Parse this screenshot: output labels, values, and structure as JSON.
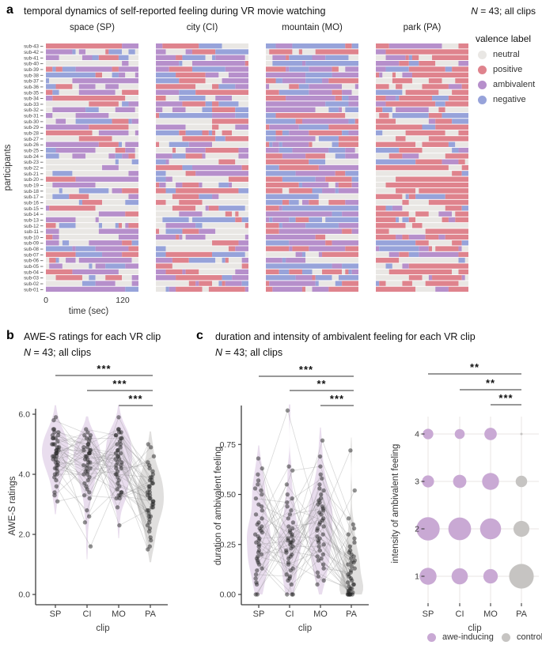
{
  "accent_colors": {
    "awe": "#c9a9d4",
    "control": "#c6c4c2",
    "point": "#262626",
    "axis": "#3c3c3c",
    "grid": "#e8e6e3"
  },
  "chart_data": [
    {
      "id": "valence_raster",
      "type": "heatmap",
      "panel_label": "a",
      "title": "temporal dynamics of self-reported feeling during VR movie watching",
      "note_prefix": "N",
      "note_rest": " = 43; all clips",
      "xlabel": "time (sec)",
      "ylabel": "participants",
      "xticks": [
        "0",
        "120"
      ],
      "x_range_sec": [
        0,
        145
      ],
      "legend_title": "valence label",
      "valence_labels": [
        "neutral",
        "positive",
        "ambivalent",
        "negative"
      ],
      "valence_colors": [
        "#e9e7e4",
        "#df838d",
        "#b68fcb",
        "#97a3da"
      ],
      "pattern_seed": 11,
      "clips": [
        {
          "header": "space (SP)",
          "proportions": [
            0.36,
            0.18,
            0.3,
            0.16
          ]
        },
        {
          "header": "city (CI)",
          "proportions": [
            0.3,
            0.22,
            0.24,
            0.24
          ]
        },
        {
          "header": "mountain (MO)",
          "proportions": [
            0.15,
            0.22,
            0.33,
            0.3
          ]
        },
        {
          "header": "park (PA)",
          "proportions": [
            0.3,
            0.48,
            0.12,
            0.1
          ]
        }
      ],
      "participants": [
        "sub-01",
        "sub-02",
        "sub-03",
        "sub-04",
        "sub-05",
        "sub-06",
        "sub-07",
        "sub-08",
        "sub-09",
        "sub-10",
        "sub-11",
        "sub-12",
        "sub-13",
        "sub-14",
        "sub-15",
        "sub-16",
        "sub-17",
        "sub-18",
        "sub-19",
        "sub-20",
        "sub-21",
        "sub-22",
        "sub-23",
        "sub-24",
        "sub-25",
        "sub-26",
        "sub-27",
        "sub-28",
        "sub-29",
        "sub-30",
        "sub-31",
        "sub-32",
        "sub-33",
        "sub-34",
        "sub-35",
        "sub-36",
        "sub-37",
        "sub-38",
        "sub-39",
        "sub-40",
        "sub-41",
        "sub-42",
        "sub-43"
      ]
    },
    {
      "id": "awe_ratings",
      "type": "violin-scatter",
      "panel_label": "b",
      "title": "AWE-S ratings for each VR clip",
      "note_prefix": "N",
      "note_rest": " = 43; all clips",
      "xlabel": "clip",
      "ylabel": "AWE-S ratings",
      "categories": [
        "SP",
        "CI",
        "MO",
        "PA"
      ],
      "groups": [
        "awe-inducing",
        "awe-inducing",
        "awe-inducing",
        "control"
      ],
      "ytick_labels": [
        "0.0",
        "2.0",
        "4.0",
        "6.0"
      ],
      "yticks": [
        0,
        2,
        4,
        6
      ],
      "ylim": [
        0,
        6.3
      ],
      "significance": [
        {
          "from": "SP",
          "to": "PA",
          "stars": "***"
        },
        {
          "from": "CI",
          "to": "PA",
          "stars": "***"
        },
        {
          "from": "MO",
          "to": "PA",
          "stars": "***"
        }
      ],
      "values": {
        "SP": [
          5.9,
          5.8,
          5.5,
          5.5,
          5.4,
          5.4,
          5.3,
          5.3,
          5.2,
          5.2,
          5.2,
          5.1,
          5.0,
          5.0,
          5.0,
          4.9,
          4.9,
          4.8,
          4.8,
          4.8,
          4.7,
          4.7,
          4.7,
          4.6,
          4.6,
          4.6,
          4.5,
          4.5,
          4.4,
          4.4,
          4.3,
          4.3,
          4.2,
          4.2,
          4.1,
          4.0,
          4.0,
          3.9,
          3.8,
          3.6,
          3.4,
          3.3,
          3.1
        ],
        "CI": [
          5.5,
          5.4,
          5.3,
          5.3,
          5.2,
          5.2,
          5.1,
          5.0,
          5.0,
          4.9,
          4.9,
          4.8,
          4.8,
          4.8,
          4.7,
          4.7,
          4.7,
          4.6,
          4.6,
          4.5,
          4.5,
          4.4,
          4.4,
          4.3,
          4.3,
          4.2,
          4.2,
          4.1,
          4.1,
          4.0,
          4.0,
          3.9,
          3.8,
          3.7,
          3.6,
          3.5,
          3.4,
          3.3,
          3.2,
          2.8,
          2.6,
          2.4,
          1.6
        ],
        "MO": [
          5.9,
          5.5,
          5.5,
          5.4,
          5.4,
          5.3,
          5.3,
          5.2,
          5.2,
          5.1,
          5.0,
          5.0,
          4.9,
          4.8,
          4.8,
          4.7,
          4.7,
          4.6,
          4.6,
          4.5,
          4.5,
          4.4,
          4.4,
          4.3,
          4.3,
          4.2,
          4.2,
          4.1,
          4.0,
          4.0,
          3.9,
          3.8,
          3.7,
          3.6,
          3.5,
          3.4,
          3.4,
          3.3,
          3.3,
          3.2,
          3.2,
          2.9,
          2.3
        ],
        "PA": [
          5.0,
          4.9,
          4.6,
          4.4,
          4.3,
          4.2,
          4.1,
          4.0,
          3.9,
          3.9,
          3.8,
          3.8,
          3.7,
          3.7,
          3.6,
          3.6,
          3.5,
          3.4,
          3.4,
          3.3,
          3.3,
          3.2,
          3.2,
          3.1,
          3.1,
          3.0,
          3.0,
          2.9,
          2.9,
          2.8,
          2.8,
          2.7,
          2.6,
          2.6,
          2.5,
          2.4,
          2.3,
          2.2,
          2.1,
          1.9,
          1.8,
          1.6,
          1.5
        ]
      }
    },
    {
      "id": "ambivalent_duration",
      "type": "violin-scatter",
      "panel_label": "c",
      "title": "duration and intensity of ambivalent feeling for each VR clip",
      "note_prefix": "N",
      "note_rest": " = 43; all clips",
      "xlabel": "clip",
      "ylabel": "duration of ambivalent feeling",
      "categories": [
        "SP",
        "CI",
        "MO",
        "PA"
      ],
      "groups": [
        "awe-inducing",
        "awe-inducing",
        "awe-inducing",
        "control"
      ],
      "ytick_labels": [
        "0.00",
        "0.25",
        "0.50",
        "0.75"
      ],
      "yticks": [
        0,
        0.25,
        0.5,
        0.75
      ],
      "ylim": [
        0,
        0.95
      ],
      "significance": [
        {
          "from": "SP",
          "to": "PA",
          "stars": "***"
        },
        {
          "from": "CI",
          "to": "PA",
          "stars": "**"
        },
        {
          "from": "MO",
          "to": "PA",
          "stars": "***"
        }
      ],
      "values": {
        "SP": [
          0.68,
          0.63,
          0.6,
          0.57,
          0.55,
          0.53,
          0.52,
          0.5,
          0.48,
          0.45,
          0.44,
          0.42,
          0.4,
          0.38,
          0.36,
          0.35,
          0.34,
          0.33,
          0.32,
          0.31,
          0.3,
          0.29,
          0.28,
          0.27,
          0.26,
          0.25,
          0.24,
          0.22,
          0.21,
          0.2,
          0.19,
          0.18,
          0.17,
          0.16,
          0.15,
          0.13,
          0.12,
          0.1,
          0.08,
          0.06,
          0.05,
          0.0,
          0.0
        ],
        "CI": [
          0.92,
          0.64,
          0.62,
          0.55,
          0.5,
          0.48,
          0.46,
          0.44,
          0.42,
          0.4,
          0.38,
          0.36,
          0.34,
          0.33,
          0.32,
          0.31,
          0.3,
          0.29,
          0.28,
          0.27,
          0.27,
          0.26,
          0.26,
          0.25,
          0.24,
          0.23,
          0.22,
          0.21,
          0.2,
          0.19,
          0.18,
          0.16,
          0.15,
          0.13,
          0.12,
          0.1,
          0.09,
          0.08,
          0.07,
          0.05,
          0.0,
          0.0,
          0.0
        ],
        "MO": [
          0.77,
          0.69,
          0.64,
          0.6,
          0.58,
          0.55,
          0.53,
          0.52,
          0.5,
          0.48,
          0.47,
          0.46,
          0.45,
          0.44,
          0.43,
          0.42,
          0.41,
          0.4,
          0.38,
          0.37,
          0.36,
          0.35,
          0.34,
          0.33,
          0.32,
          0.3,
          0.29,
          0.28,
          0.27,
          0.26,
          0.25,
          0.24,
          0.22,
          0.2,
          0.19,
          0.18,
          0.17,
          0.15,
          0.13,
          0.11,
          0.09,
          0.07,
          0.05
        ],
        "PA": [
          0.72,
          0.52,
          0.38,
          0.35,
          0.33,
          0.3,
          0.28,
          0.26,
          0.24,
          0.22,
          0.21,
          0.2,
          0.19,
          0.18,
          0.17,
          0.16,
          0.16,
          0.15,
          0.14,
          0.13,
          0.12,
          0.11,
          0.1,
          0.09,
          0.08,
          0.07,
          0.06,
          0.05,
          0.05,
          0.04,
          0.03,
          0.03,
          0.02,
          0.02,
          0.01,
          0.01,
          0.0,
          0.0,
          0.0,
          0.0,
          0.0,
          0.0,
          0.0
        ]
      }
    },
    {
      "id": "ambivalent_intensity",
      "type": "bubble",
      "xlabel": "clip",
      "ylabel": "intensity of ambivalent feeling",
      "categories": [
        "SP",
        "CI",
        "MO",
        "PA"
      ],
      "groups": [
        "awe-inducing",
        "awe-inducing",
        "awe-inducing",
        "control"
      ],
      "intensity_levels": [
        "1",
        "2",
        "3",
        "4"
      ],
      "proportions": {
        "SP": {
          "1": 0.26,
          "2": 0.49,
          "3": 0.13,
          "4": 0.1
        },
        "CI": {
          "1": 0.24,
          "2": 0.47,
          "3": 0.16,
          "4": 0.09
        },
        "MO": {
          "1": 0.19,
          "2": 0.4,
          "3": 0.26,
          "4": 0.14
        },
        "PA": {
          "1": 0.55,
          "2": 0.23,
          "3": 0.12,
          "4": 0.005
        }
      },
      "significance": [
        {
          "from": "SP",
          "to": "PA",
          "stars": "**"
        },
        {
          "from": "CI",
          "to": "PA",
          "stars": "**"
        },
        {
          "from": "MO",
          "to": "PA",
          "stars": "***"
        }
      ],
      "legend": [
        {
          "label": "awe-inducing",
          "color": "#c9a9d4"
        },
        {
          "label": "control",
          "color": "#c6c4c2"
        }
      ]
    }
  ]
}
